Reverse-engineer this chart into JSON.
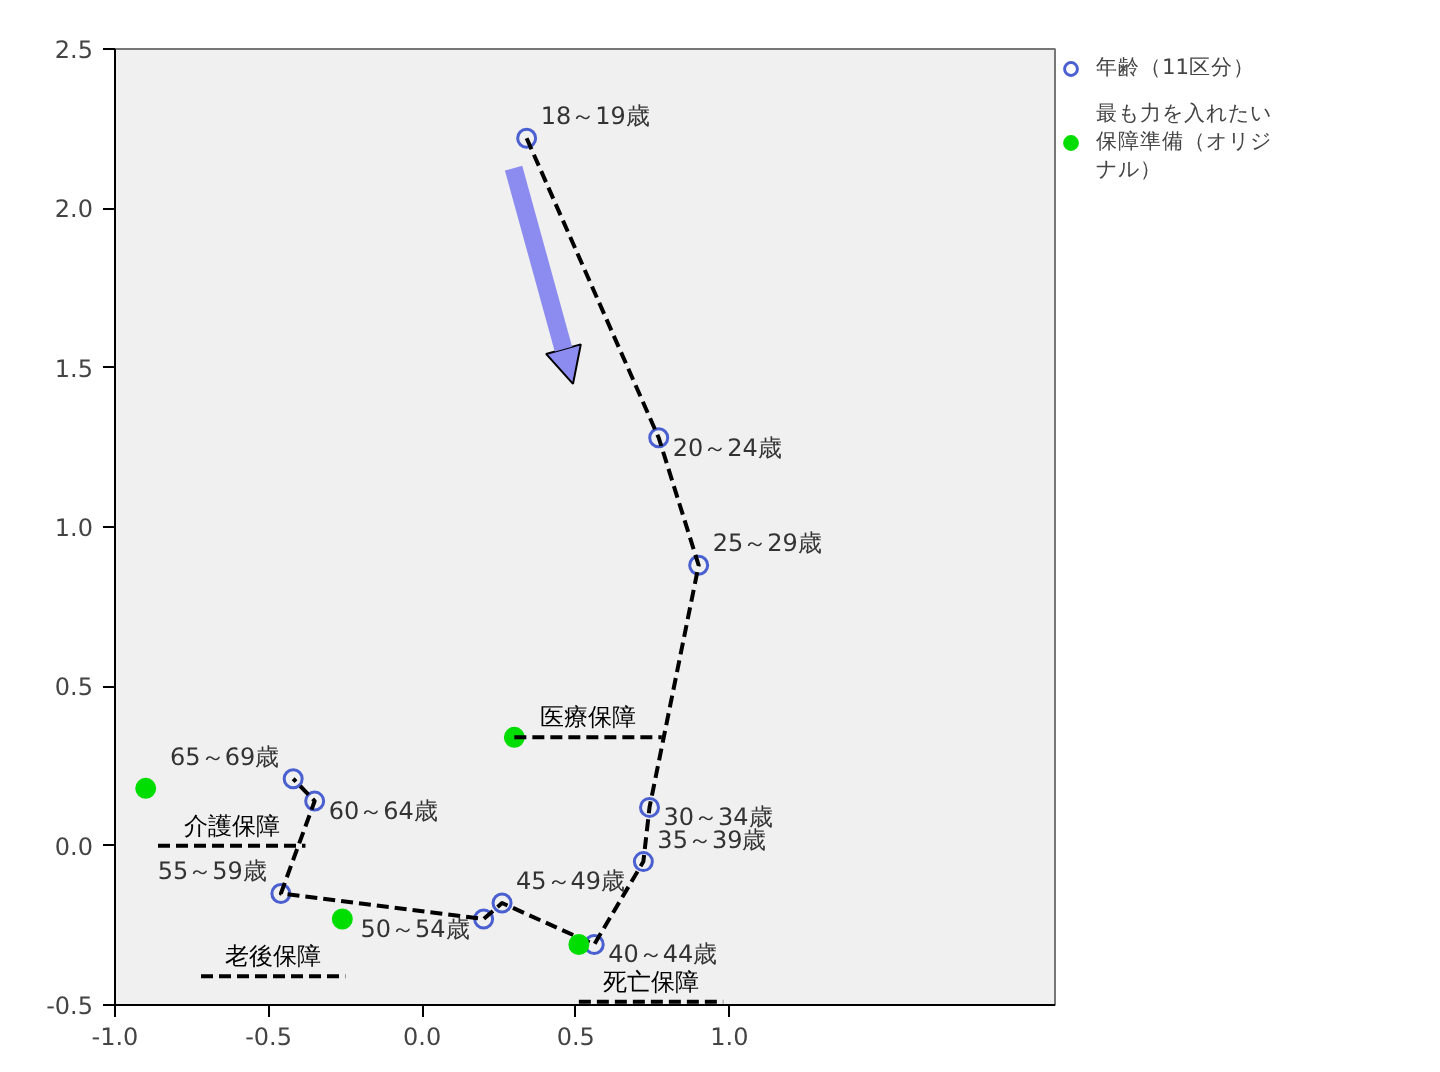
{
  "chart_data": {
    "type": "scatter",
    "xlim": [
      -1.0,
      2.06
    ],
    "ylim": [
      -0.5,
      2.5
    ],
    "xticks": [
      {
        "value": -1.0,
        "label": "-1.0"
      },
      {
        "value": -0.5,
        "label": "-0.5"
      },
      {
        "value": 0.0,
        "label": "0.0"
      },
      {
        "value": 0.5,
        "label": "0.5"
      },
      {
        "value": 1.0,
        "label": "1.0"
      }
    ],
    "yticks": [
      {
        "value": -0.5,
        "label": "-0.5"
      },
      {
        "value": 0.0,
        "label": "0.0"
      },
      {
        "value": 0.5,
        "label": "0.5"
      },
      {
        "value": 1.0,
        "label": "1.0"
      },
      {
        "value": 1.5,
        "label": "1.5"
      },
      {
        "value": 2.0,
        "label": "2.0"
      },
      {
        "value": 2.5,
        "label": "2.5"
      }
    ],
    "grid": false,
    "legend": "top right",
    "series": [
      {
        "name": "年齢（11区分）",
        "color": "#4a5fd0",
        "marker": "circle",
        "x": [
          0.34,
          0.77,
          0.9,
          0.74,
          0.72,
          0.56,
          0.26,
          0.2,
          -0.46,
          -0.35,
          -0.42
        ],
        "values": [
          2.22,
          1.28,
          0.88,
          0.12,
          -0.05,
          -0.31,
          -0.18,
          -0.23,
          -0.15,
          0.14,
          0.21
        ]
      },
      {
        "type": "line",
        "color": "#000000",
        "line_style": "dashed",
        "x": [
          0.34,
          0.77,
          0.9,
          0.74,
          0.72,
          0.56,
          0.26,
          0.2,
          -0.46,
          -0.35,
          -0.42
        ],
        "values": [
          2.22,
          1.28,
          0.88,
          0.12,
          -0.05,
          -0.31,
          -0.18,
          -0.23,
          -0.15,
          0.14,
          0.21
        ]
      },
      {
        "name": "最も力を入れたい保障準備（オリジナル）",
        "color": "#00dd00",
        "marker": "circle",
        "x": [
          0.3,
          -0.9,
          -0.26,
          0.51
        ],
        "values": [
          0.34,
          0.18,
          -0.23,
          -0.31
        ]
      },
      {
        "type": "line",
        "name": "医療保障",
        "color": "#000000",
        "line_style": "dashed",
        "x": [
          0.3,
          0.78
        ],
        "values": [
          0.34,
          0.34
        ]
      },
      {
        "type": "line",
        "name": "介護保障",
        "color": "#000000",
        "line_style": "dashed",
        "x": [
          -0.86,
          -0.38
        ],
        "values": [
          0.0,
          0.0
        ]
      },
      {
        "type": "line",
        "name": "老後保障",
        "color": "#000000",
        "line_style": "dashed",
        "x": [
          -0.72,
          -0.25
        ],
        "values": [
          -0.41,
          -0.41
        ]
      },
      {
        "type": "line",
        "name": "死亡保障",
        "color": "#000000",
        "line_style": "dashed",
        "x": [
          0.51,
          0.98
        ],
        "values": [
          -0.49,
          -0.49
        ]
      }
    ],
    "annotations": [
      {
        "text": "18～19歳",
        "x": 0.34,
        "y": 2.22
      },
      {
        "text": "20～24歳",
        "x": 0.77,
        "y": 1.28
      },
      {
        "text": "25～29歳",
        "x": 0.9,
        "y": 0.88
      },
      {
        "text": "30～34歳",
        "x": 0.74,
        "y": 0.12
      },
      {
        "text": "35～39歳",
        "x": 0.72,
        "y": -0.05
      },
      {
        "text": "40～44歳",
        "x": 0.56,
        "y": -0.31
      },
      {
        "text": "45～49歳",
        "x": 0.26,
        "y": -0.18
      },
      {
        "text": "50～54歳",
        "x": 0.2,
        "y": -0.23
      },
      {
        "text": "55～59歳",
        "x": -0.46,
        "y": -0.15
      },
      {
        "text": "60～64歳",
        "x": -0.35,
        "y": 0.14
      },
      {
        "text": "65～69歳",
        "x": -0.42,
        "y": 0.21
      }
    ]
  }
}
